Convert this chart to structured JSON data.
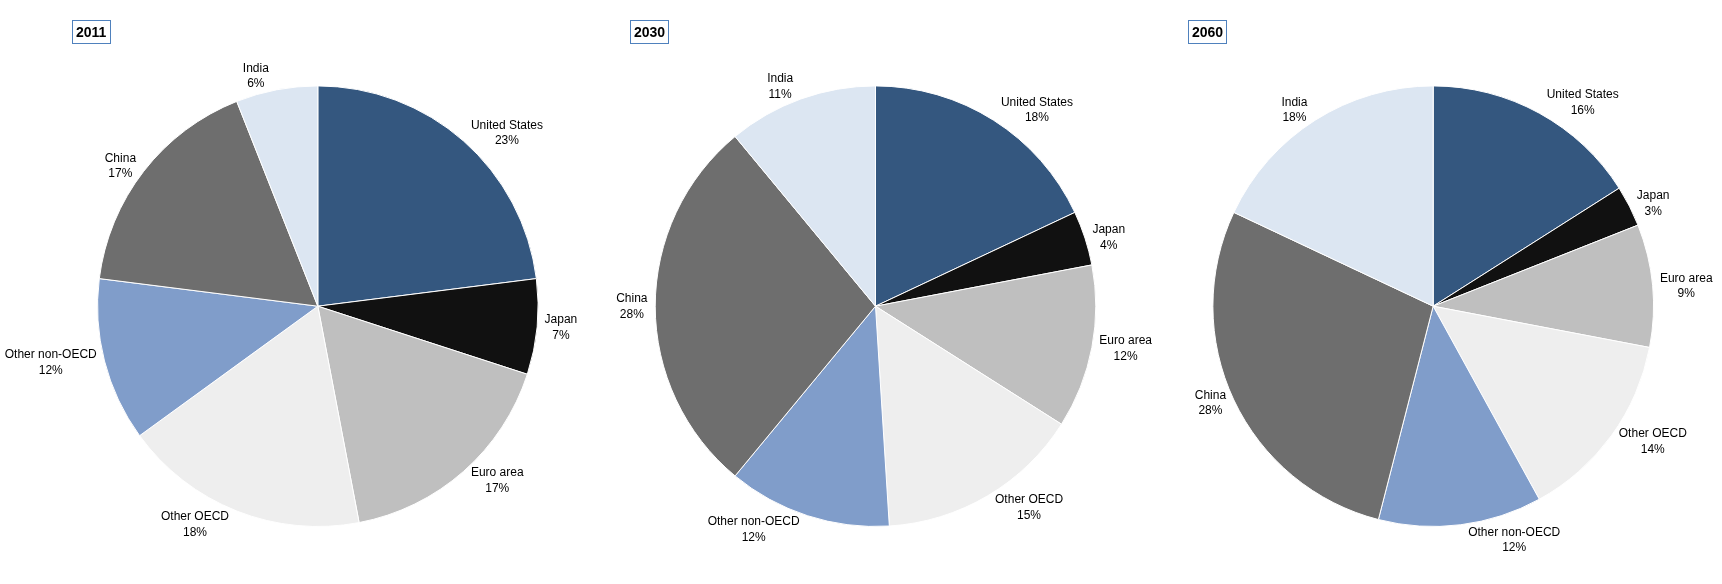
{
  "chart_data": [
    {
      "type": "pie",
      "title": "2011",
      "categories": [
        "United States",
        "Japan",
        "Euro area",
        "Other OECD",
        "Other non-OECD",
        "China",
        "India"
      ],
      "values": [
        23,
        7,
        17,
        18,
        12,
        17,
        6
      ],
      "value_labels": [
        "23%",
        "7%",
        "17%",
        "18%",
        "12%",
        "17%",
        "6%"
      ],
      "colors": [
        "#34577f",
        "#111111",
        "#bfbfbf",
        "#eeeeee",
        "#809dca",
        "#6e6e6e",
        "#dce6f2"
      ]
    },
    {
      "type": "pie",
      "title": "2030",
      "categories": [
        "United States",
        "Japan",
        "Euro area",
        "Other OECD",
        "Other non-OECD",
        "China",
        "India"
      ],
      "values": [
        18,
        4,
        12,
        15,
        12,
        28,
        11
      ],
      "value_labels": [
        "18%",
        "4%",
        "12%",
        "15%",
        "12%",
        "28%",
        "11%"
      ],
      "colors": [
        "#34577f",
        "#111111",
        "#bfbfbf",
        "#eeeeee",
        "#809dca",
        "#6e6e6e",
        "#dce6f2"
      ]
    },
    {
      "type": "pie",
      "title": "2060",
      "categories": [
        "United States",
        "Japan",
        "Euro area",
        "Other OECD",
        "Other non-OECD",
        "China",
        "India"
      ],
      "values": [
        16,
        3,
        9,
        14,
        12,
        28,
        18
      ],
      "value_labels": [
        "16%",
        "3%",
        "9%",
        "14%",
        "12%",
        "28%",
        "18%"
      ],
      "colors": [
        "#34577f",
        "#111111",
        "#bfbfbf",
        "#eeeeee",
        "#809dca",
        "#6e6e6e",
        "#dce6f2"
      ]
    }
  ]
}
